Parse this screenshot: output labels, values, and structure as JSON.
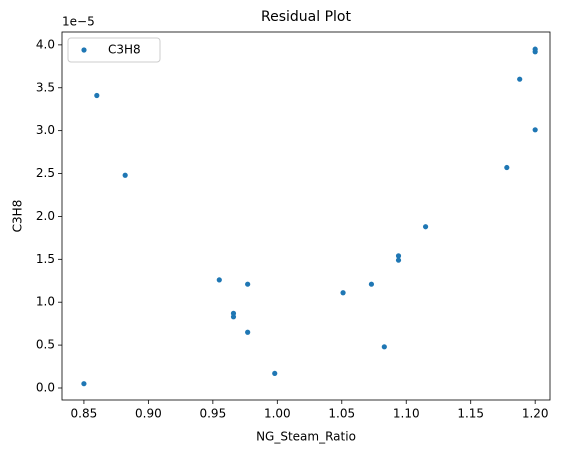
{
  "chart_data": {
    "type": "scatter",
    "title": "Residual Plot",
    "xlabel": "NG_Steam_Ratio",
    "ylabel": "C3H8",
    "offset_text": "1e−5",
    "series": [
      {
        "name": "C3H8",
        "color": "#1f77b4",
        "x": [
          0.85,
          0.86,
          0.882,
          0.955,
          0.966,
          0.966,
          0.977,
          0.977,
          0.998,
          1.051,
          1.073,
          1.083,
          1.094,
          1.094,
          1.115,
          1.178,
          1.188,
          1.2,
          1.2,
          1.2
        ],
        "values": [
          0.05,
          3.41,
          2.48,
          1.26,
          0.87,
          0.83,
          1.21,
          0.65,
          0.17,
          1.11,
          1.21,
          0.48,
          1.54,
          1.49,
          1.88,
          2.57,
          3.6,
          3.95,
          3.92,
          3.01
        ]
      }
    ],
    "xlim": [
      0.833,
      1.2115
    ],
    "ylim": [
      -0.14,
      4.15
    ],
    "xticks": [
      0.85,
      {
        "value": 0.9,
        "label": "0.90"
      },
      0.95,
      {
        "value": 1.0,
        "label": "1.00"
      },
      1.05,
      {
        "value": 1.1,
        "label": "1.10"
      },
      1.15,
      {
        "value": 1.2,
        "label": "1.20"
      }
    ],
    "yticks": [
      {
        "value": 0,
        "label": "0.0"
      },
      0.5,
      {
        "value": 1,
        "label": "1.0"
      },
      1.5,
      {
        "value": 2,
        "label": "2.0"
      },
      2.5,
      {
        "value": 3,
        "label": "3.0"
      },
      3.5,
      {
        "value": 4,
        "label": "4.0"
      }
    ],
    "legend": "upper left"
  }
}
